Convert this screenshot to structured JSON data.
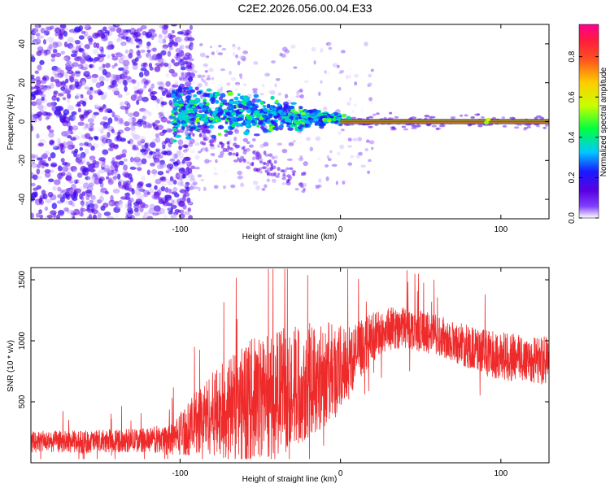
{
  "title": "C2E2.2026.056.00.04.E33",
  "colors": {
    "snr_line": "#ee2a2a",
    "frame": "#000000",
    "colormap": [
      "#ffffff",
      "#7a00e0",
      "#2020ff",
      "#00c8ff",
      "#00ff40",
      "#c8ff00",
      "#ffcc00",
      "#ff2020",
      "#ff00a0"
    ]
  },
  "chart_data": [
    {
      "type": "heatmap",
      "title": "",
      "xlabel": "Height of straight line (km)",
      "ylabel": "Frequency (Hz)",
      "xlim": [
        -193,
        130
      ],
      "ylim": [
        -50,
        50
      ],
      "xticks": [
        -100,
        0,
        100
      ],
      "xtick_labels": [
        "-100",
        "0",
        "100"
      ],
      "yticks": [
        -40,
        -20,
        0,
        20,
        40
      ],
      "ytick_labels": [
        "-40",
        "-20",
        "0",
        "20",
        "40"
      ],
      "colorbar": {
        "label": "Normalized spectral amplitude",
        "range": [
          0,
          0.96
        ],
        "ticks": [
          0.0,
          0.2,
          0.4,
          0.6,
          0.8
        ],
        "tick_labels": [
          "0.0",
          "0.2",
          "0.4",
          "0.6",
          "0.8"
        ]
      },
      "features": [
        {
          "name": "noise_region",
          "x_range": [
            -193,
            -100
          ],
          "freq_range": [
            -50,
            50
          ],
          "amplitude": 0.15
        },
        {
          "name": "noisy_transition",
          "x_range": [
            -100,
            20
          ],
          "freq_range": [
            -35,
            40
          ],
          "amplitude": 0.08
        },
        {
          "name": "converging_band_upper",
          "x_start": -105,
          "x_end": 0,
          "freq_start": 11,
          "freq_end": 2,
          "amplitude": 0.3
        },
        {
          "name": "converging_band_lower",
          "x_start": -105,
          "x_end": 0,
          "freq_start": 1,
          "freq_end": 0,
          "amplitude": 0.3
        },
        {
          "name": "diverging_tail",
          "x_start": -95,
          "x_end": -20,
          "freq_start": -3,
          "freq_end": -32,
          "amplitude": 0.1
        },
        {
          "name": "steady_line",
          "x_start": 0,
          "x_end": 130,
          "freq": 0,
          "amplitude": 0.9
        }
      ]
    },
    {
      "type": "line",
      "title": "",
      "xlabel": "Height of straight line (km)",
      "ylabel": "SNR (10 * v/v)",
      "xlim": [
        -193,
        130
      ],
      "ylim": [
        0,
        1600
      ],
      "xticks": [
        -100,
        0,
        100
      ],
      "xtick_labels": [
        "-100",
        "0",
        "100"
      ],
      "yticks": [
        500,
        1000,
        1500
      ],
      "ytick_labels": [
        "500",
        "1000",
        "1500"
      ],
      "series": [
        {
          "name": "SNR",
          "x": [
            -193,
            -180,
            -160,
            -140,
            -120,
            -105,
            -95,
            -85,
            -75,
            -65,
            -55,
            -45,
            -35,
            -25,
            -15,
            -5,
            0,
            10,
            20,
            30,
            40,
            50,
            60,
            70,
            80,
            90,
            100,
            110,
            120,
            130
          ],
          "values": [
            170,
            175,
            170,
            180,
            185,
            200,
            280,
            380,
            420,
            480,
            520,
            560,
            600,
            650,
            700,
            750,
            760,
            900,
            1030,
            1100,
            1110,
            1080,
            1050,
            1000,
            950,
            900,
            880,
            860,
            850,
            830
          ],
          "noise_amplitude": [
            90,
            90,
            95,
            95,
            100,
            140,
            220,
            300,
            380,
            450,
            500,
            520,
            520,
            500,
            450,
            400,
            380,
            250,
            200,
            180,
            170,
            170,
            170,
            170,
            180,
            190,
            200,
            200,
            200,
            200
          ]
        }
      ]
    }
  ]
}
